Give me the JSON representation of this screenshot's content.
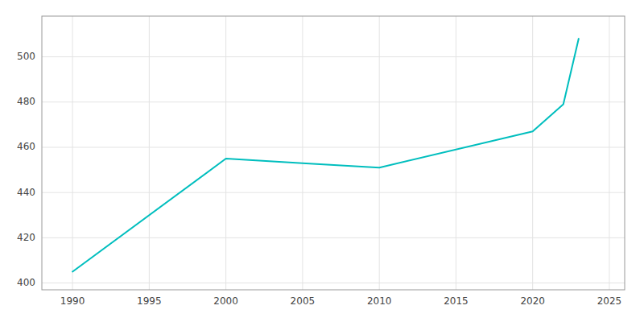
{
  "chart_data": {
    "type": "line",
    "x": [
      1990,
      2000,
      2005,
      2010,
      2020,
      2022,
      2023
    ],
    "values": [
      405,
      455,
      453,
      451,
      467,
      479,
      508
    ],
    "color": "#00BEBE",
    "xlim": [
      1988,
      2026
    ],
    "ylim": [
      397,
      518
    ],
    "xticks": [
      1990,
      1995,
      2000,
      2005,
      2010,
      2015,
      2020,
      2025
    ],
    "yticks": [
      400,
      420,
      440,
      460,
      480,
      500
    ],
    "grid": true
  }
}
